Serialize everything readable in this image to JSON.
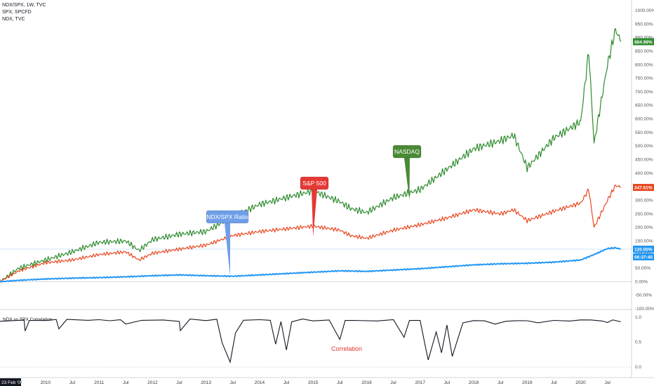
{
  "header": {
    "line1": "NDX/SPX, 1W, TVC",
    "line2": "SPX, SPCFD",
    "line3": "NDX, TVC"
  },
  "chart_data": [
    {
      "type": "line",
      "scale": "percent",
      "x_ticks": [
        "Jul",
        "2010",
        "Jul",
        "2011",
        "Jul",
        "2012",
        "Jul",
        "2013",
        "Jul",
        "2014",
        "Jul",
        "2015",
        "Jul",
        "2016",
        "Jul",
        "2017",
        "Jul",
        "2018",
        "Jul",
        "2019",
        "Jul",
        "2020",
        "Jul"
      ],
      "y_ticks": [
        "1000.00%",
        "950.00%",
        "900.00%",
        "850.00%",
        "800.00%",
        "750.00%",
        "700.00%",
        "650.00%",
        "600.00%",
        "550.00%",
        "500.00%",
        "450.00%",
        "400.00%",
        "350.00%",
        "300.00%",
        "250.00%",
        "200.00%",
        "150.00%",
        "100.00%",
        "50.00%",
        "0.00%",
        "-50.00%",
        "-100.00%"
      ],
      "ylim": [
        -100,
        1000
      ],
      "series": [
        {
          "name": "NASDAQ",
          "color": "#2e8b2e",
          "last_label": "884.98%",
          "x": [
            2009.15,
            2009.5,
            2010.0,
            2010.5,
            2011.0,
            2011.5,
            2011.75,
            2012.0,
            2012.5,
            2013.0,
            2013.5,
            2014.0,
            2014.5,
            2015.0,
            2015.5,
            2015.7,
            2016.0,
            2016.5,
            2017.0,
            2017.5,
            2018.0,
            2018.5,
            2018.75,
            2019.0,
            2019.5,
            2020.0,
            2020.15,
            2020.25,
            2020.5,
            2020.65,
            2020.75
          ],
          "y": [
            0,
            50,
            80,
            110,
            145,
            150,
            115,
            155,
            175,
            185,
            240,
            285,
            310,
            335,
            295,
            270,
            255,
            310,
            340,
            415,
            490,
            520,
            540,
            420,
            530,
            590,
            850,
            510,
            800,
            930,
            885
          ]
        },
        {
          "name": "S&P 500",
          "color": "#e8461e",
          "last_label": "347.61%",
          "x": [
            2009.15,
            2009.5,
            2010.0,
            2010.5,
            2011.0,
            2011.5,
            2011.75,
            2012.0,
            2012.5,
            2013.0,
            2013.5,
            2014.0,
            2014.5,
            2015.0,
            2015.5,
            2015.7,
            2016.0,
            2016.5,
            2017.0,
            2017.5,
            2018.0,
            2018.5,
            2018.75,
            2019.0,
            2019.5,
            2020.0,
            2020.15,
            2020.25,
            2020.5,
            2020.65,
            2020.75
          ],
          "y": [
            0,
            40,
            70,
            80,
            100,
            110,
            80,
            105,
            120,
            135,
            170,
            185,
            195,
            205,
            190,
            170,
            160,
            190,
            210,
            235,
            265,
            250,
            265,
            225,
            260,
            290,
            340,
            200,
            300,
            355,
            348
          ]
        },
        {
          "name": "NDX/SPX Ratio",
          "color": "#2196f3",
          "last_label": "120.05%",
          "time_label": "06:37:40",
          "x": [
            2009.15,
            2009.5,
            2010.0,
            2010.5,
            2011.0,
            2011.5,
            2012.0,
            2012.5,
            2013.0,
            2013.5,
            2014.0,
            2014.5,
            2015.0,
            2015.5,
            2016.0,
            2016.5,
            2017.0,
            2017.5,
            2018.0,
            2018.5,
            2019.0,
            2019.5,
            2020.0,
            2020.25,
            2020.5,
            2020.65,
            2020.75
          ],
          "y": [
            0,
            5,
            10,
            13,
            15,
            18,
            22,
            25,
            22,
            20,
            25,
            30,
            35,
            40,
            38,
            43,
            48,
            55,
            62,
            66,
            68,
            72,
            80,
            100,
            122,
            125,
            120
          ]
        }
      ],
      "annotations": [
        "NDX/SPX Ratio",
        "S&P 500",
        "NASDAQ"
      ],
      "date_badge": "23 Feb '09"
    },
    {
      "type": "line",
      "title": "NDX vs SPX Correlation",
      "label": "Correlation",
      "y_ticks": [
        "1.0",
        "0.5",
        "0.0"
      ],
      "ylim": [
        0,
        1.05
      ],
      "series": [
        {
          "name": "Correlation",
          "color": "#131722",
          "x": [
            2009.15,
            2009.6,
            2009.62,
            2009.7,
            2010.0,
            2010.2,
            2010.25,
            2010.4,
            2010.8,
            2011.0,
            2011.2,
            2011.4,
            2011.5,
            2011.8,
            2012.2,
            2012.5,
            2012.52,
            2012.7,
            2013.0,
            2013.2,
            2013.3,
            2013.45,
            2013.55,
            2013.7,
            2014.0,
            2014.2,
            2014.3,
            2014.4,
            2014.5,
            2014.6,
            2014.8,
            2015.0,
            2015.3,
            2015.5,
            2015.6,
            2015.8,
            2016.2,
            2016.5,
            2016.7,
            2016.8,
            2017.0,
            2017.1,
            2017.15,
            2017.3,
            2017.4,
            2017.5,
            2017.6,
            2017.8,
            2018.0,
            2018.2,
            2018.4,
            2018.6,
            2018.8,
            2019.0,
            2019.2,
            2019.5,
            2019.8,
            2020.0,
            2020.2,
            2020.4,
            2020.5,
            2020.6,
            2020.75
          ],
          "y": [
            0.92,
            0.95,
            0.72,
            0.95,
            0.94,
            0.95,
            0.78,
            0.96,
            0.94,
            0.95,
            0.93,
            0.95,
            0.85,
            0.94,
            0.95,
            0.93,
            0.72,
            0.95,
            0.94,
            0.95,
            0.5,
            0.1,
            0.7,
            0.95,
            0.94,
            0.95,
            0.45,
            0.9,
            0.35,
            0.92,
            0.95,
            0.94,
            0.95,
            0.55,
            0.92,
            0.95,
            0.94,
            0.95,
            0.6,
            0.92,
            0.95,
            0.4,
            0.15,
            0.7,
            0.3,
            0.85,
            0.2,
            0.9,
            0.92,
            0.94,
            0.85,
            0.93,
            0.92,
            0.94,
            0.88,
            0.95,
            0.93,
            0.94,
            0.95,
            0.92,
            0.88,
            0.95,
            0.9
          ]
        }
      ]
    }
  ]
}
